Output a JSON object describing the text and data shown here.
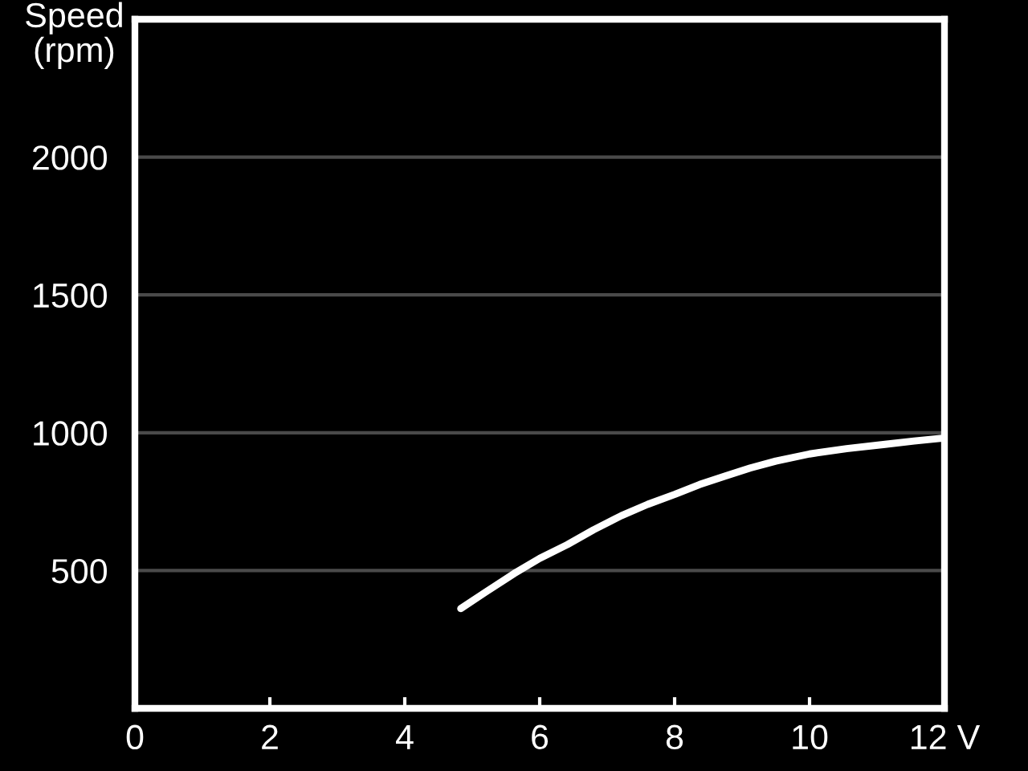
{
  "chart_data": {
    "type": "line",
    "ylabel": "Speed (rpm)",
    "x": [
      4.83,
      5.2,
      5.62,
      6.0,
      6.41,
      6.8,
      7.21,
      7.6,
      8.0,
      8.37,
      8.75,
      9.12,
      9.5,
      10.0,
      10.55,
      11.12,
      11.55,
      12.0
    ],
    "series": [
      {
        "color": "#ffffff",
        "values": [
          362,
          422,
          489,
          544,
          594,
          648,
          699,
          740,
          776,
          812,
          843,
          872,
          897,
          923,
          942,
          958,
          970,
          981
        ]
      }
    ],
    "xlim": [
      0,
      12
    ],
    "ylim": [
      0,
      2500
    ],
    "xticks": [
      0,
      2,
      4,
      6,
      8,
      10,
      {
        "value": 12,
        "label": "12 V"
      }
    ],
    "yticks": [
      500,
      1000,
      1500,
      2000
    ],
    "grid": "y",
    "marker": "none",
    "line_style": "solid"
  }
}
